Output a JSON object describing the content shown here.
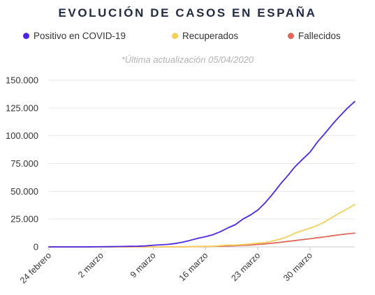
{
  "title": "EVOLUCIÓN DE CASOS EN ESPAÑA",
  "subtitle": "*Última actualización 05/04/2020",
  "chart_data": {
    "type": "line",
    "title": "EVOLUCIÓN DE CASOS EN ESPAÑA",
    "subtitle": "*Última actualización 05/04/2020",
    "xlabel": "",
    "ylabel": "",
    "legend_position": "top",
    "grid": true,
    "ylim": [
      0,
      150000
    ],
    "y_ticks": [
      0,
      25000,
      50000,
      75000,
      100000,
      125000,
      150000
    ],
    "y_tick_labels": [
      "0",
      "25.000",
      "50.000",
      "75.000",
      "100.000",
      "125.000",
      "150.000"
    ],
    "x_ticks": [
      "2020-02-24",
      "2020-03-02",
      "2020-03-09",
      "2020-03-16",
      "2020-03-23",
      "2020-03-30"
    ],
    "x_tick_labels": [
      "24 febrero",
      "2 marzo",
      "9 marzo",
      "16 marzo",
      "23 marzo",
      "30 marzo"
    ],
    "x_range": [
      "2020-02-24",
      "2020-04-05"
    ],
    "x": [
      "2020-02-24",
      "2020-02-25",
      "2020-02-26",
      "2020-02-27",
      "2020-02-28",
      "2020-02-29",
      "2020-03-01",
      "2020-03-02",
      "2020-03-03",
      "2020-03-04",
      "2020-03-05",
      "2020-03-06",
      "2020-03-07",
      "2020-03-08",
      "2020-03-09",
      "2020-03-10",
      "2020-03-11",
      "2020-03-12",
      "2020-03-13",
      "2020-03-14",
      "2020-03-15",
      "2020-03-16",
      "2020-03-17",
      "2020-03-18",
      "2020-03-19",
      "2020-03-20",
      "2020-03-21",
      "2020-03-22",
      "2020-03-23",
      "2020-03-24",
      "2020-03-25",
      "2020-03-26",
      "2020-03-27",
      "2020-03-28",
      "2020-03-29",
      "2020-03-30",
      "2020-03-31",
      "2020-04-01",
      "2020-04-02",
      "2020-04-03",
      "2020-04-04",
      "2020-04-05"
    ],
    "series": [
      {
        "name": "Positivo en COVID-19",
        "color": "#4f23e8",
        "values": [
          0,
          0,
          0,
          0,
          0,
          0,
          100,
          150,
          200,
          300,
          400,
          500,
          600,
          900,
          1500,
          1900,
          2300,
          3100,
          4300,
          6000,
          7800,
          9200,
          11000,
          13700,
          17100,
          20000,
          25000,
          28600,
          33100,
          39700,
          47600,
          56200,
          64000,
          72200,
          78800,
          85200,
          94400,
          102100,
          110200,
          117700,
          124700,
          130800
        ]
      },
      {
        "name": "Recuperados",
        "color": "#f6cf5b",
        "values": [
          0,
          0,
          0,
          0,
          0,
          0,
          0,
          0,
          0,
          0,
          0,
          0,
          0,
          0,
          0,
          0,
          0,
          100,
          200,
          200,
          500,
          500,
          600,
          1100,
          1600,
          1600,
          2100,
          2600,
          3400,
          3800,
          5400,
          7000,
          9300,
          12300,
          14700,
          16800,
          19300,
          22600,
          26700,
          30500,
          34200,
          38100
        ]
      },
      {
        "name": "Fallecidos",
        "color": "#e0675a",
        "values": [
          0,
          0,
          0,
          0,
          0,
          0,
          0,
          0,
          0,
          0,
          0,
          0,
          0,
          0,
          0,
          0,
          100,
          100,
          100,
          200,
          300,
          300,
          500,
          600,
          800,
          1000,
          1400,
          1700,
          2200,
          2700,
          3400,
          4100,
          4900,
          5700,
          6500,
          7300,
          8200,
          9000,
          10000,
          10900,
          11700,
          12400
        ]
      }
    ]
  }
}
